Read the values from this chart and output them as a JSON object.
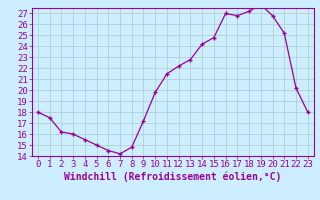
{
  "x": [
    0,
    1,
    2,
    3,
    4,
    5,
    6,
    7,
    8,
    9,
    10,
    11,
    12,
    13,
    14,
    15,
    16,
    17,
    18,
    19,
    20,
    21,
    22,
    23
  ],
  "y": [
    18.0,
    17.5,
    16.2,
    16.0,
    15.5,
    15.0,
    14.5,
    14.2,
    14.8,
    17.2,
    19.8,
    21.5,
    22.2,
    22.8,
    24.2,
    24.8,
    27.0,
    26.8,
    27.2,
    27.8,
    26.8,
    25.2,
    20.2,
    18.0
  ],
  "xlabel": "Windchill (Refroidissement éolien,°C)",
  "ylim": [
    14,
    27.5
  ],
  "xlim": [
    -0.5,
    23.5
  ],
  "yticks": [
    14,
    15,
    16,
    17,
    18,
    19,
    20,
    21,
    22,
    23,
    24,
    25,
    26,
    27
  ],
  "xticks": [
    0,
    1,
    2,
    3,
    4,
    5,
    6,
    7,
    8,
    9,
    10,
    11,
    12,
    13,
    14,
    15,
    16,
    17,
    18,
    19,
    20,
    21,
    22,
    23
  ],
  "line_color": "#990099",
  "marker": "+",
  "bg_color": "#cceeff",
  "grid_color": "#aacccc",
  "font_color": "#990099",
  "tick_fontsize": 6.5,
  "xlabel_fontsize": 7.0
}
